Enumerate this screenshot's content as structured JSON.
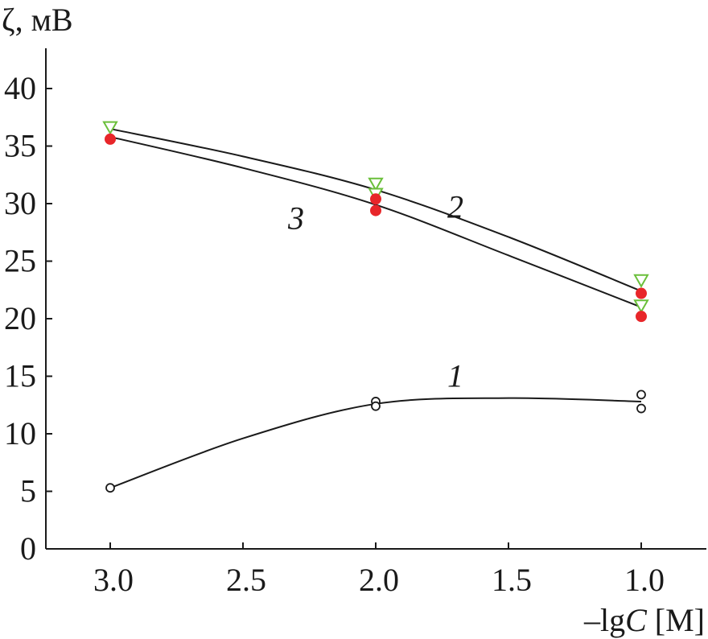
{
  "chart_data": {
    "type": "scatter",
    "title": "",
    "ylabel": "ζ, мВ",
    "xlabel_prefix": "–lg",
    "xlabel_var": "C",
    "xlabel_suffix": " [M]",
    "xlim": [
      3.25,
      0.8
    ],
    "ylim": [
      0,
      44
    ],
    "x_inverted": true,
    "grid": false,
    "x_ticks": [
      3.0,
      2.5,
      2.0,
      1.5,
      1.0
    ],
    "x_tick_labels": [
      "3.0",
      "2.5",
      "2.0",
      "1.5",
      "1.0"
    ],
    "y_ticks": [
      0,
      5,
      10,
      15,
      20,
      25,
      30,
      35,
      40
    ],
    "y_tick_labels": [
      "0",
      "5",
      "10",
      "15",
      "20",
      "25",
      "30",
      "35",
      "40"
    ],
    "series": [
      {
        "name": "1",
        "marker": "open-circle",
        "color": "#1a1a1a",
        "points": [
          {
            "x": 3.0,
            "y": 5.3
          },
          {
            "x": 2.0,
            "y": 12.8
          },
          {
            "x": 2.0,
            "y": 12.4
          },
          {
            "x": 1.0,
            "y": 13.4
          },
          {
            "x": 1.0,
            "y": 12.2
          }
        ],
        "curve": [
          {
            "x": 3.0,
            "y": 5.3
          },
          {
            "x": 2.5,
            "y": 9.6
          },
          {
            "x": 2.0,
            "y": 12.6
          },
          {
            "x": 1.5,
            "y": 13.1
          },
          {
            "x": 1.0,
            "y": 12.8
          }
        ],
        "label_at": {
          "x": 1.7,
          "y": 15.0
        }
      },
      {
        "name": "2",
        "marker": "open-triangle-down",
        "color": "#6abf3a",
        "points": [
          {
            "x": 3.0,
            "y": 36.6
          },
          {
            "x": 2.0,
            "y": 31.7
          },
          {
            "x": 2.0,
            "y": 30.8
          },
          {
            "x": 1.0,
            "y": 23.3
          },
          {
            "x": 1.0,
            "y": 21.1
          }
        ],
        "curve": [
          {
            "x": 3.0,
            "y": 36.5
          },
          {
            "x": 2.5,
            "y": 34.1
          },
          {
            "x": 2.0,
            "y": 31.2
          },
          {
            "x": 1.5,
            "y": 27.1
          },
          {
            "x": 1.0,
            "y": 22.4
          }
        ],
        "label_at": {
          "x": 1.7,
          "y": 29.7
        }
      },
      {
        "name": "3",
        "marker": "filled-circle",
        "color": "#e8262a",
        "points": [
          {
            "x": 3.0,
            "y": 35.6
          },
          {
            "x": 2.0,
            "y": 30.4
          },
          {
            "x": 2.0,
            "y": 29.4
          },
          {
            "x": 1.0,
            "y": 22.2
          },
          {
            "x": 1.0,
            "y": 20.2
          }
        ],
        "curve": [
          {
            "x": 3.0,
            "y": 35.8
          },
          {
            "x": 2.5,
            "y": 33.1
          },
          {
            "x": 2.0,
            "y": 29.9
          },
          {
            "x": 1.5,
            "y": 25.5
          },
          {
            "x": 1.0,
            "y": 21.0
          }
        ],
        "label_at": {
          "x": 2.3,
          "y": 28.7
        }
      }
    ]
  }
}
